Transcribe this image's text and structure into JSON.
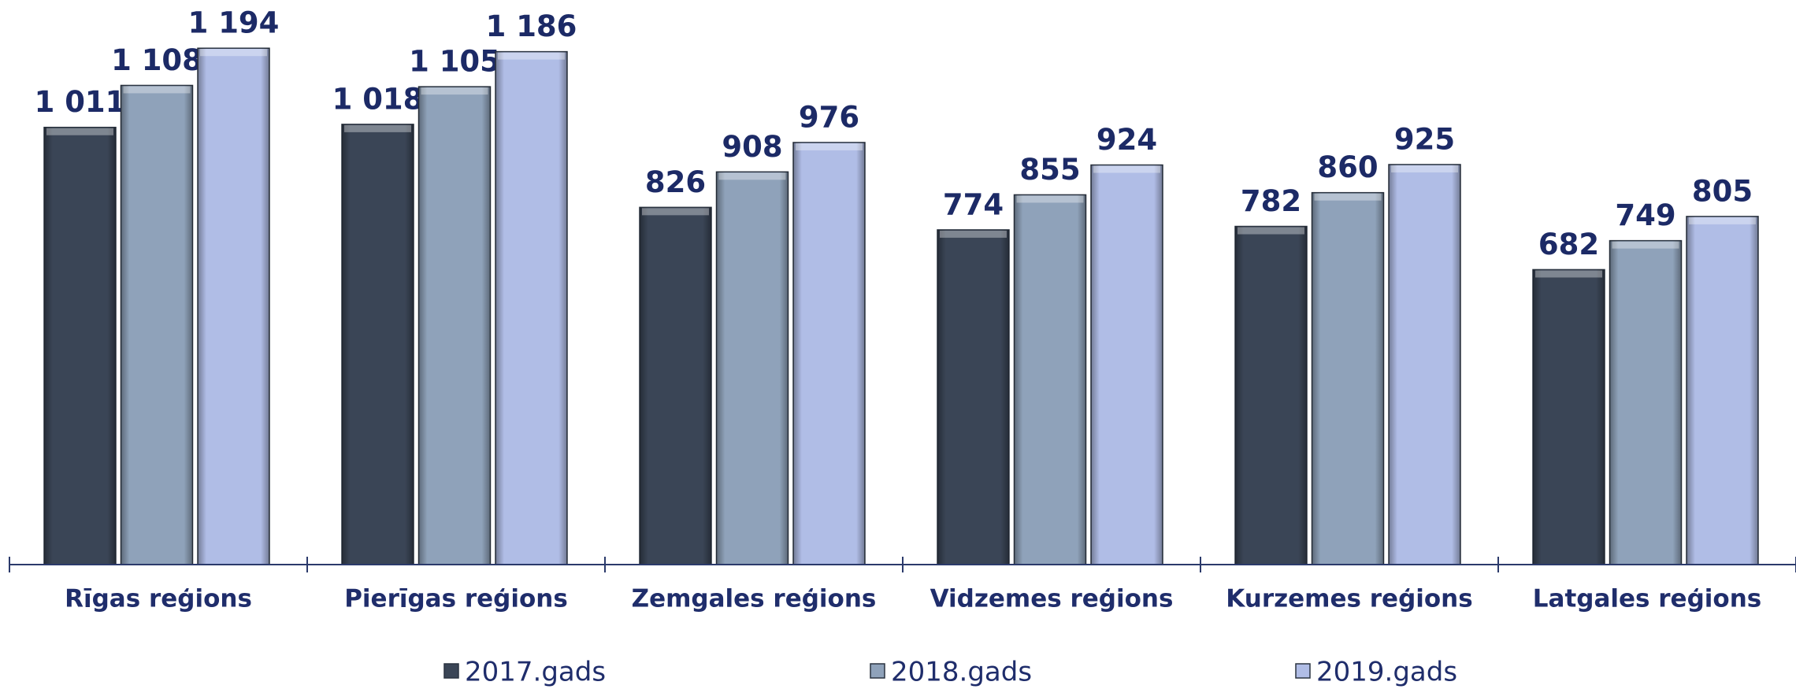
{
  "chart_data": {
    "type": "bar",
    "categories": [
      "Rīgas reģions",
      "Pierīgas reģions",
      "Zemgales reģions",
      "Vidzemes reģions",
      "Kurzemes reģions",
      "Latgales reģions"
    ],
    "series": [
      {
        "name": "2017.gads",
        "color": "#3a4556",
        "values": [
          1011,
          1018,
          826,
          774,
          782,
          682
        ],
        "value_labels": [
          "1 011",
          "1 018",
          "826",
          "774",
          "782",
          "682"
        ]
      },
      {
        "name": "2018.gads",
        "color": "#8fa2ba",
        "values": [
          1108,
          1105,
          908,
          855,
          860,
          749
        ],
        "value_labels": [
          "1 108",
          "1 105",
          "908",
          "855",
          "860",
          "749"
        ]
      },
      {
        "name": "2019.gads",
        "color": "#b0bde6",
        "values": [
          1194,
          1186,
          976,
          924,
          925,
          805
        ],
        "value_labels": [
          "1 194",
          "1 186",
          "976",
          "924",
          "925",
          "805"
        ]
      }
    ],
    "ylim": [
      0,
      1300
    ]
  }
}
